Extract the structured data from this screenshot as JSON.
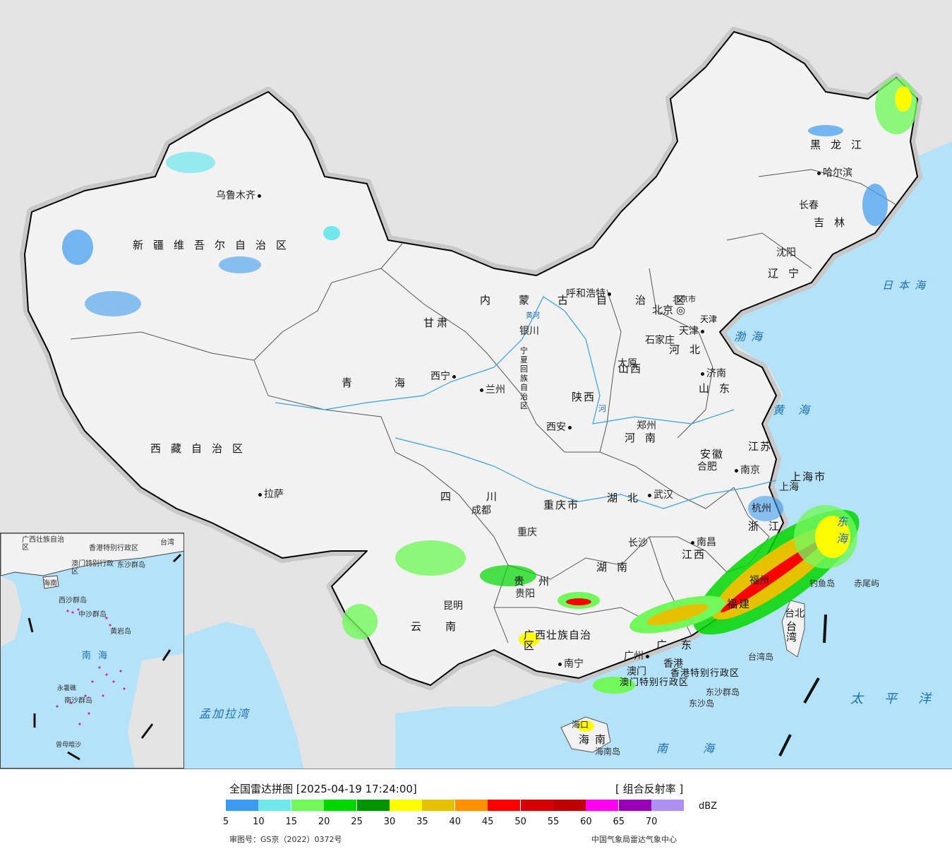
{
  "map": {
    "provinces": [
      {
        "name": "新疆维吾尔自治区"
      },
      {
        "name": "西藏自治区"
      },
      {
        "name": "青海"
      },
      {
        "name": "甘肃"
      },
      {
        "name": "内蒙古自治区"
      },
      {
        "name": "黑龙江"
      },
      {
        "name": "吉林"
      },
      {
        "name": "辽宁"
      },
      {
        "name": "河北"
      },
      {
        "name": "山西"
      },
      {
        "name": "山东"
      },
      {
        "name": "陕西"
      },
      {
        "name": "河南"
      },
      {
        "name": "江苏"
      },
      {
        "name": "安徽"
      },
      {
        "name": "上海市"
      },
      {
        "name": "浙江"
      },
      {
        "name": "四川"
      },
      {
        "name": "重庆市"
      },
      {
        "name": "湖北"
      },
      {
        "name": "湖南"
      },
      {
        "name": "江西"
      },
      {
        "name": "福建"
      },
      {
        "name": "贵州"
      },
      {
        "name": "云南"
      },
      {
        "name": "广西壮族自治区"
      },
      {
        "name": "广东"
      },
      {
        "name": "海南"
      },
      {
        "name": "台湾"
      },
      {
        "name": "香港特别行政区"
      },
      {
        "name": "澳门特别行政区"
      },
      {
        "name": "宁夏回族自治区"
      },
      {
        "name": "北京市"
      },
      {
        "name": "天津"
      }
    ],
    "cities": [
      {
        "name": "乌鲁木齐"
      },
      {
        "name": "拉萨"
      },
      {
        "name": "西宁"
      },
      {
        "name": "兰州"
      },
      {
        "name": "银川"
      },
      {
        "name": "呼和浩特"
      },
      {
        "name": "哈尔滨"
      },
      {
        "name": "长春"
      },
      {
        "name": "沈阳"
      },
      {
        "name": "北京"
      },
      {
        "name": "天津"
      },
      {
        "name": "石家庄"
      },
      {
        "name": "太原"
      },
      {
        "name": "济南"
      },
      {
        "name": "西安"
      },
      {
        "name": "郑州"
      },
      {
        "name": "南京"
      },
      {
        "name": "合肥"
      },
      {
        "name": "上海"
      },
      {
        "name": "杭州"
      },
      {
        "name": "武汉"
      },
      {
        "name": "成都"
      },
      {
        "name": "重庆"
      },
      {
        "name": "长沙"
      },
      {
        "name": "南昌"
      },
      {
        "name": "福州"
      },
      {
        "name": "贵阳"
      },
      {
        "name": "昆明"
      },
      {
        "name": "南宁"
      },
      {
        "name": "广州"
      },
      {
        "name": "香港"
      },
      {
        "name": "澳门"
      },
      {
        "name": "台北"
      },
      {
        "name": "海口"
      }
    ],
    "seas": [
      {
        "name": "日本海"
      },
      {
        "name": "渤海"
      },
      {
        "name": "黄海"
      },
      {
        "name": "东海"
      },
      {
        "name": "太平洋"
      },
      {
        "name": "南海"
      },
      {
        "name": "孟加拉湾"
      }
    ],
    "islands": [
      {
        "name": "钓鱼岛"
      },
      {
        "name": "赤尾屿"
      },
      {
        "name": "台湾岛"
      },
      {
        "name": "东沙群岛"
      },
      {
        "name": "东沙岛"
      },
      {
        "name": "海南岛"
      }
    ],
    "rivers": [
      {
        "name": "黄河"
      },
      {
        "name": "河"
      }
    ]
  },
  "inset": {
    "labels": [
      {
        "name": "广西壮族自治区"
      },
      {
        "name": "香港特别行政区"
      },
      {
        "name": "澳门特别行政区"
      },
      {
        "name": "东沙群岛"
      },
      {
        "name": "西沙群岛"
      },
      {
        "name": "中沙群岛"
      },
      {
        "name": "黄岩岛"
      },
      {
        "name": "南海"
      },
      {
        "name": "南沙群岛"
      },
      {
        "name": "永暑礁"
      },
      {
        "name": "曾母暗沙"
      },
      {
        "name": "台湾"
      },
      {
        "name": "海南"
      }
    ]
  },
  "legend": {
    "title": "全国雷达拼图 [2025-04-19 17:24:00]",
    "product": "[ 组合反射率 ]",
    "unit": "dBZ",
    "scale": [
      {
        "value": "5",
        "color": "#3d9bef"
      },
      {
        "value": "10",
        "color": "#6fe7ec"
      },
      {
        "value": "15",
        "color": "#73f85c"
      },
      {
        "value": "20",
        "color": "#02d700"
      },
      {
        "value": "25",
        "color": "#029301"
      },
      {
        "value": "30",
        "color": "#fffd00"
      },
      {
        "value": "35",
        "color": "#e6c100"
      },
      {
        "value": "40",
        "color": "#ff9000"
      },
      {
        "value": "45",
        "color": "#ff0000"
      },
      {
        "value": "50",
        "color": "#d60000"
      },
      {
        "value": "55",
        "color": "#c00000"
      },
      {
        "value": "60",
        "color": "#ff00f0"
      },
      {
        "value": "65",
        "color": "#9600b4"
      },
      {
        "value": "70",
        "color": "#ad90f0"
      }
    ],
    "footer_left": "审图号：GS京（2022）0372号",
    "footer_right": "中国气象局雷达气象中心"
  },
  "colors": {
    "ocean": "#b4e2f8",
    "land": "#f2f2f2",
    "neighbors": "#e4e4e4",
    "border": "#000000"
  }
}
